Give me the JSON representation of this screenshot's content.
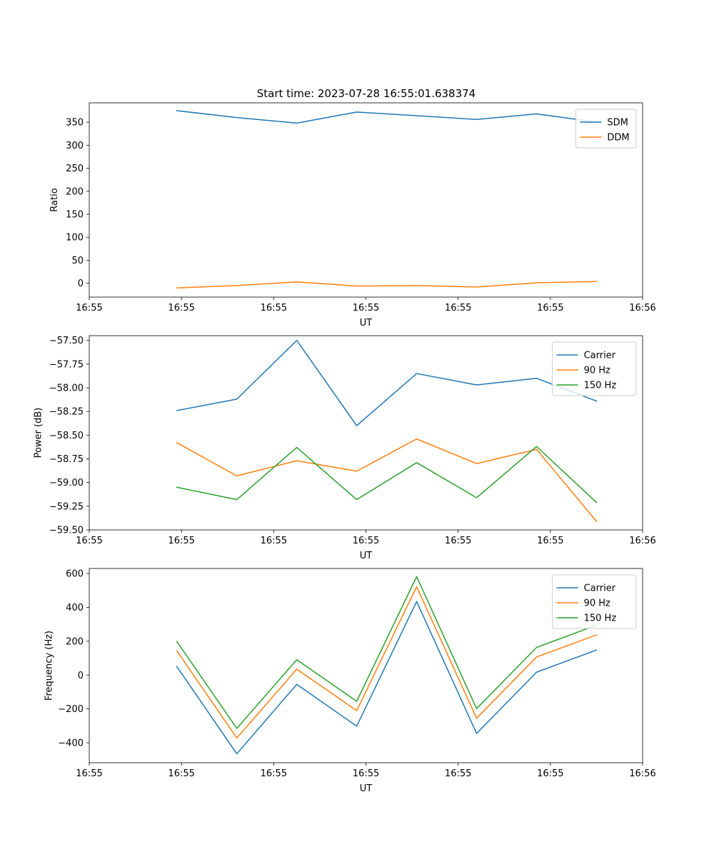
{
  "figure": {
    "title": "Start time: 2023-07-28 16:55:01.638374"
  },
  "colors": {
    "blue": "#1f77b4",
    "orange": "#ff7f0e",
    "green": "#2ca02c"
  },
  "chart_data": [
    {
      "type": "line",
      "title": "Start time: 2023-07-28 16:55:01.638374",
      "xlabel": "UT",
      "ylabel": "Ratio",
      "x": [
        0.95,
        1.6,
        2.25,
        2.9,
        3.55,
        4.2,
        4.85,
        5.5
      ],
      "xlim": [
        0,
        6
      ],
      "xticks": [
        0,
        1,
        2,
        3,
        4,
        5,
        6
      ],
      "xtick_labels": [
        "16:55",
        "16:55",
        "16:55",
        "16:55",
        "16:55",
        "16:55",
        "16:56"
      ],
      "ylim": [
        -30,
        392
      ],
      "yticks": [
        0,
        50,
        100,
        150,
        200,
        250,
        300,
        350
      ],
      "ytick_labels": [
        "0",
        "50",
        "100",
        "150",
        "200",
        "250",
        "300",
        "350"
      ],
      "legend_position": "top-right",
      "series": [
        {
          "name": "SDM",
          "color": "#1f77b4",
          "values": [
            375,
            360,
            348,
            372,
            364,
            356,
            368,
            350
          ]
        },
        {
          "name": "DDM",
          "color": "#ff7f0e",
          "values": [
            -10,
            -5,
            3,
            -6,
            -5,
            -8,
            1,
            4
          ]
        }
      ]
    },
    {
      "type": "line",
      "title": "",
      "xlabel": "UT",
      "ylabel": "Power (dB)",
      "x": [
        0.95,
        1.6,
        2.25,
        2.9,
        3.55,
        4.2,
        4.85,
        5.5
      ],
      "xlim": [
        0,
        6
      ],
      "xticks": [
        0,
        1,
        2,
        3,
        4,
        5,
        6
      ],
      "xtick_labels": [
        "16:55",
        "16:55",
        "16:55",
        "16:55",
        "16:55",
        "16:55",
        "16:56"
      ],
      "ylim": [
        -59.5,
        -57.45
      ],
      "yticks": [
        -59.5,
        -59.25,
        -59.0,
        -58.75,
        -58.5,
        -58.25,
        -58.0,
        -57.75,
        -57.5
      ],
      "ytick_labels": [
        "−59.50",
        "−59.25",
        "−59.00",
        "−58.75",
        "−58.50",
        "−58.25",
        "−58.00",
        "−57.75",
        "−57.50"
      ],
      "legend_position": "top-right",
      "series": [
        {
          "name": "Carrier",
          "color": "#1f77b4",
          "values": [
            -58.24,
            -58.12,
            -57.5,
            -58.4,
            -57.85,
            -57.97,
            -57.9,
            -58.14
          ]
        },
        {
          "name": "90 Hz",
          "color": "#ff7f0e",
          "values": [
            -58.58,
            -58.93,
            -58.77,
            -58.88,
            -58.54,
            -58.8,
            -58.65,
            -59.41
          ]
        },
        {
          "name": "150 Hz",
          "color": "#2ca02c",
          "values": [
            -59.05,
            -59.18,
            -58.63,
            -59.18,
            -58.79,
            -59.16,
            -58.62,
            -59.21
          ]
        }
      ]
    },
    {
      "type": "line",
      "title": "",
      "xlabel": "UT",
      "ylabel": "Frequency (Hz)",
      "x": [
        0.95,
        1.6,
        2.25,
        2.9,
        3.55,
        4.2,
        4.85,
        5.5
      ],
      "xlim": [
        0,
        6
      ],
      "xticks": [
        0,
        1,
        2,
        3,
        4,
        5,
        6
      ],
      "xtick_labels": [
        "16:55",
        "16:55",
        "16:55",
        "16:55",
        "16:55",
        "16:55",
        "16:56"
      ],
      "ylim": [
        -518,
        630
      ],
      "yticks": [
        -400,
        -200,
        0,
        200,
        400,
        600
      ],
      "ytick_labels": [
        "−400",
        "−200",
        "0",
        "200",
        "400",
        "600"
      ],
      "legend_position": "top-right",
      "series": [
        {
          "name": "Carrier",
          "color": "#1f77b4",
          "values": [
            50,
            -465,
            -55,
            -302,
            435,
            -345,
            17,
            148
          ]
        },
        {
          "name": "90 Hz",
          "color": "#ff7f0e",
          "values": [
            143,
            -372,
            35,
            -210,
            522,
            -255,
            107,
            237
          ]
        },
        {
          "name": "150 Hz",
          "color": "#2ca02c",
          "values": [
            198,
            -315,
            91,
            -155,
            582,
            -198,
            163,
            295
          ]
        }
      ]
    }
  ]
}
